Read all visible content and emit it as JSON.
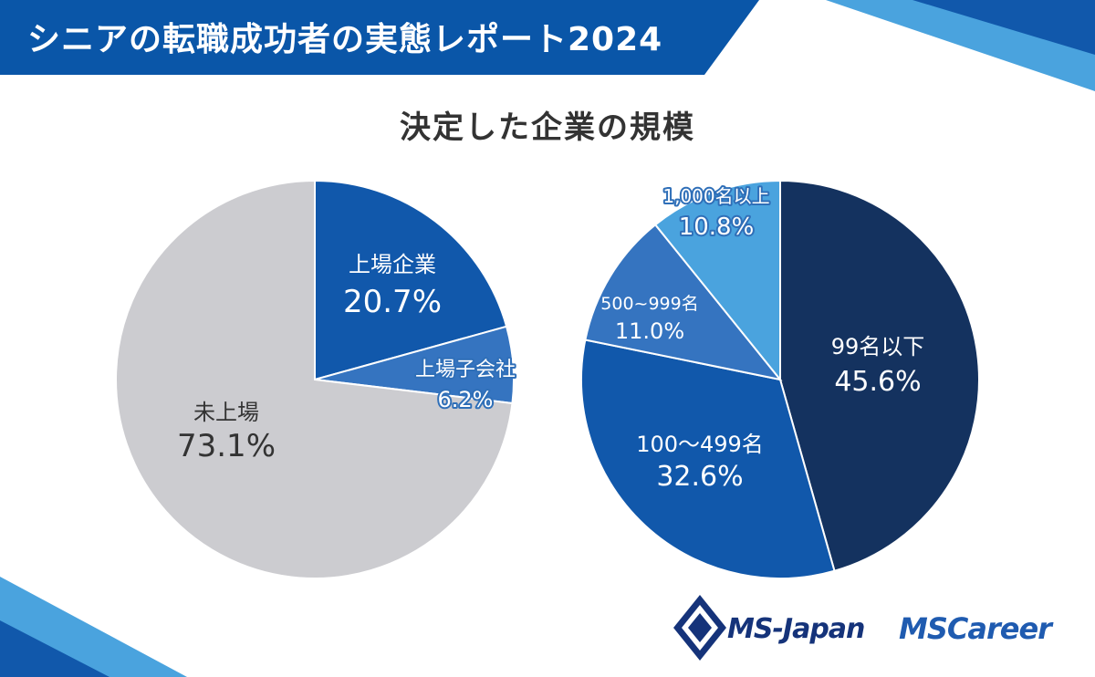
{
  "header": {
    "title": "シニアの転職成功者の実態レポート2024"
  },
  "subtitle": "決定した企業の規模",
  "colors": {
    "banner": "#0a56a8",
    "navy": "#14325f",
    "blue_dark": "#1158ab",
    "blue_mid": "#3574c0",
    "blue_light": "#4aa3de",
    "gray": "#ccccd0"
  },
  "chart_data": [
    {
      "type": "pie",
      "title": "決定した企業の規模",
      "slices": [
        {
          "label": "上場企業",
          "value": 20.7,
          "value_label": "20.7%"
        },
        {
          "label": "上場子会社",
          "value": 6.2,
          "value_label": "6.2%"
        },
        {
          "label": "未上場",
          "value": 73.1,
          "value_label": "73.1%"
        }
      ]
    },
    {
      "type": "pie",
      "title": "決定した企業の規模",
      "slices": [
        {
          "label": "99名以下",
          "value": 45.6,
          "value_label": "45.6%"
        },
        {
          "label": "100〜499名",
          "value": 32.6,
          "value_label": "32.6%"
        },
        {
          "label": "500~999名",
          "value": 11.0,
          "value_label": "11.0%"
        },
        {
          "label": "1,000名以上",
          "value": 10.8,
          "value_label": "10.8%"
        }
      ]
    }
  ],
  "logos": {
    "company": "MS-Japan",
    "brand": "MSCareer"
  }
}
